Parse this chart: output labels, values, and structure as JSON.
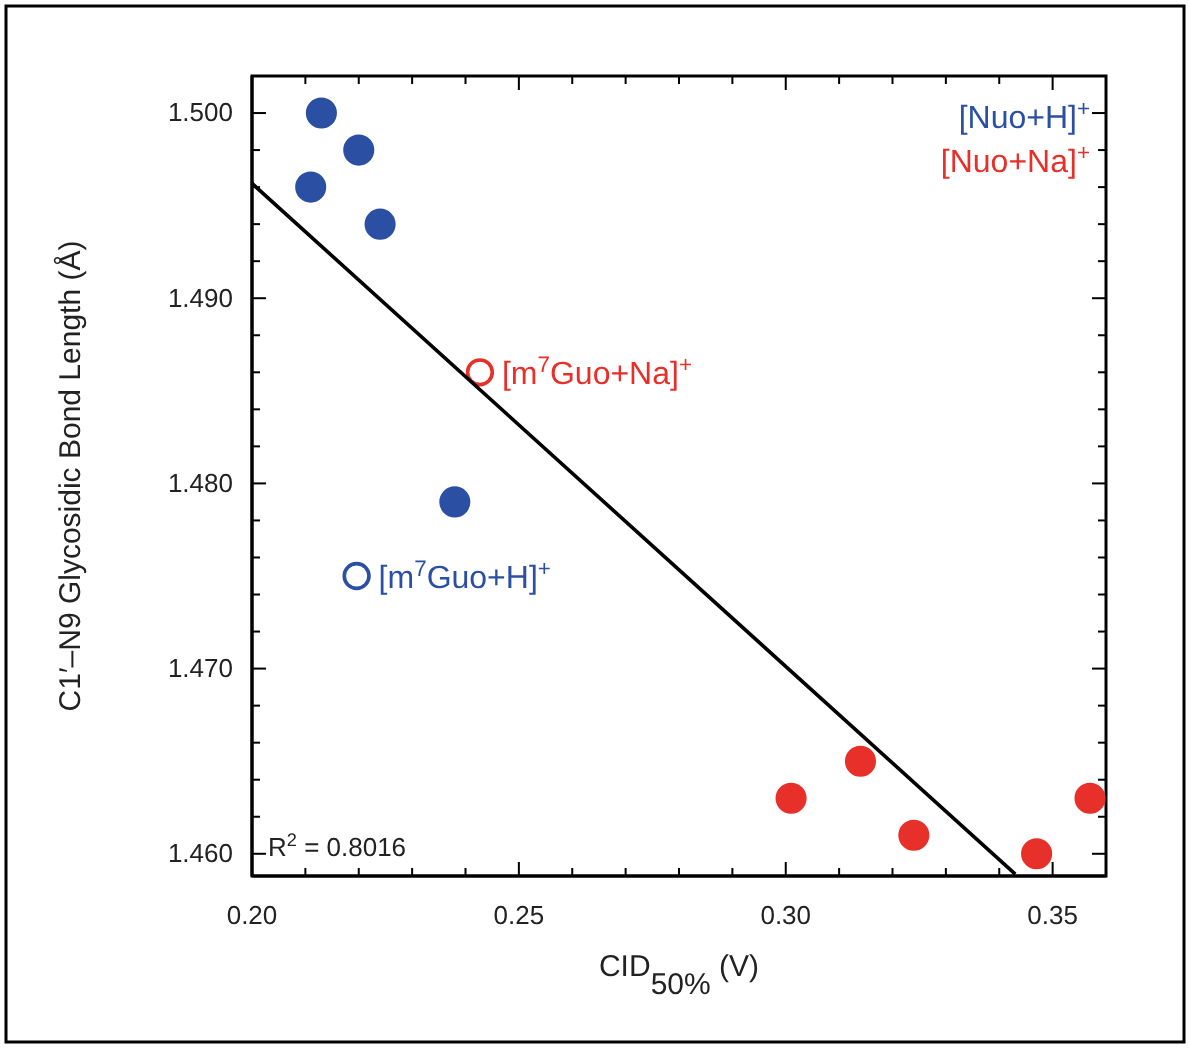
{
  "chart_data": {
    "type": "scatter",
    "xlabel": "CID$_{50%}$ (V)",
    "ylabel": "C1′–N9 Glycosidic Bond Length (Å)",
    "xlim": [
      0.2,
      0.36
    ],
    "ylim": [
      1.4588,
      1.502
    ],
    "xticks": [
      {
        "value": 0.2,
        "label": "0.20"
      },
      {
        "value": 0.21,
        "label": null
      },
      {
        "value": 0.22,
        "label": null
      },
      {
        "value": 0.23,
        "label": null
      },
      {
        "value": 0.24,
        "label": null
      },
      {
        "value": 0.25,
        "label": "0.25"
      },
      {
        "value": 0.26,
        "label": null
      },
      {
        "value": 0.27,
        "label": null
      },
      {
        "value": 0.28,
        "label": null
      },
      {
        "value": 0.29,
        "label": null
      },
      {
        "value": 0.3,
        "label": "0.30"
      },
      {
        "value": 0.31,
        "label": null
      },
      {
        "value": 0.32,
        "label": null
      },
      {
        "value": 0.33,
        "label": null
      },
      {
        "value": 0.34,
        "label": null
      },
      {
        "value": 0.35,
        "label": "0.35"
      }
    ],
    "yticks": [
      {
        "value": 1.46,
        "label": "1.460"
      },
      {
        "value": 1.462,
        "label": null
      },
      {
        "value": 1.464,
        "label": null
      },
      {
        "value": 1.466,
        "label": null
      },
      {
        "value": 1.468,
        "label": null
      },
      {
        "value": 1.47,
        "label": "1.470"
      },
      {
        "value": 1.472,
        "label": null
      },
      {
        "value": 1.474,
        "label": null
      },
      {
        "value": 1.476,
        "label": null
      },
      {
        "value": 1.478,
        "label": null
      },
      {
        "value": 1.48,
        "label": "1.480"
      },
      {
        "value": 1.482,
        "label": null
      },
      {
        "value": 1.484,
        "label": null
      },
      {
        "value": 1.486,
        "label": null
      },
      {
        "value": 1.488,
        "label": null
      },
      {
        "value": 1.49,
        "label": "1.490"
      },
      {
        "value": 1.492,
        "label": null
      },
      {
        "value": 1.494,
        "label": null
      },
      {
        "value": 1.496,
        "label": null
      },
      {
        "value": 1.498,
        "label": null
      },
      {
        "value": 1.5,
        "label": "1.500"
      }
    ],
    "legend": "top right",
    "grid": false,
    "series": [
      {
        "name": "[Nuo+H]$^{+}$",
        "marker": "circle",
        "color": "#2b4fa3",
        "x": [
          0.213,
          0.22,
          0.211,
          0.224,
          0.238
        ],
        "values": [
          1.5,
          1.498,
          1.496,
          1.494,
          1.479
        ]
      },
      {
        "name": "[Nuo+Na]$^{+}$",
        "marker": "circle",
        "color": "#e8302a",
        "x": [
          0.301,
          0.314,
          0.324,
          0.347,
          0.357
        ],
        "values": [
          1.463,
          1.465,
          1.461,
          1.46,
          1.463
        ]
      },
      {
        "marker": "circle",
        "color": "#2b4fa3",
        "x": [
          0.2196
        ],
        "values": [
          1.475
        ]
      },
      {
        "marker": "circle",
        "color": "#e8302a",
        "x": [
          0.2427
        ],
        "values": [
          1.486
        ]
      },
      {
        "type": "line",
        "marker": "none",
        "color": "#000000",
        "x": [
          0.2,
          0.343
        ],
        "values": [
          1.4962,
          1.4589
        ]
      }
    ],
    "annotations": [
      {
        "text": "[m$^{7}$Guo+H]$^{+}$",
        "x": 0.2196,
        "y": 1.475
      },
      {
        "text": "[m$^{7}$Guo+Na]$^{+}$",
        "x": 0.2427,
        "y": 1.486
      },
      "R$^{2}$ = 0.8016"
    ]
  }
}
